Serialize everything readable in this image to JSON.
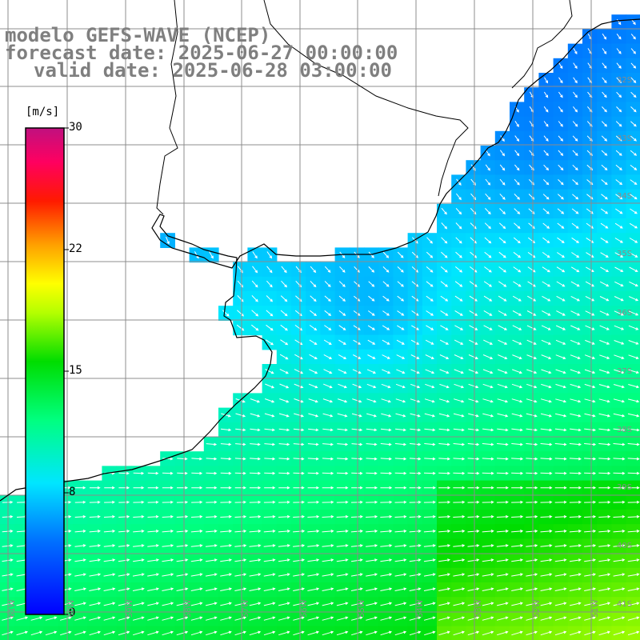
{
  "title": {
    "line1": "modelo GEFS-WAVE (NCEP)",
    "line2": "forecast date: 2025-06-27 00:00:00",
    "line3": "valid date: 2025-06-28 03:00:00"
  },
  "colorbar": {
    "unit": "[m/s]",
    "ticks": [
      "0",
      "8",
      "15",
      "22",
      "30"
    ],
    "range": [
      0,
      30
    ]
  },
  "axes": {
    "lat_labels": [
      "32S",
      "33S",
      "34S",
      "35S",
      "36S",
      "37S",
      "38S",
      "39S",
      "40S",
      "41S"
    ],
    "lon_labels": [
      "61W",
      "60W",
      "59W",
      "58W",
      "57W",
      "56W",
      "55W",
      "54W",
      "53W",
      "52W",
      "51W"
    ]
  },
  "colors": {
    "land": "#ffffff",
    "coastline": "#000000",
    "grid": "#8c8c8c",
    "arrows": "#ffffff",
    "title_text": "#7f7f7f"
  },
  "field": {
    "variable": "wind speed",
    "arrow_direction_summary": "southward near coast, eastward offshore"
  }
}
